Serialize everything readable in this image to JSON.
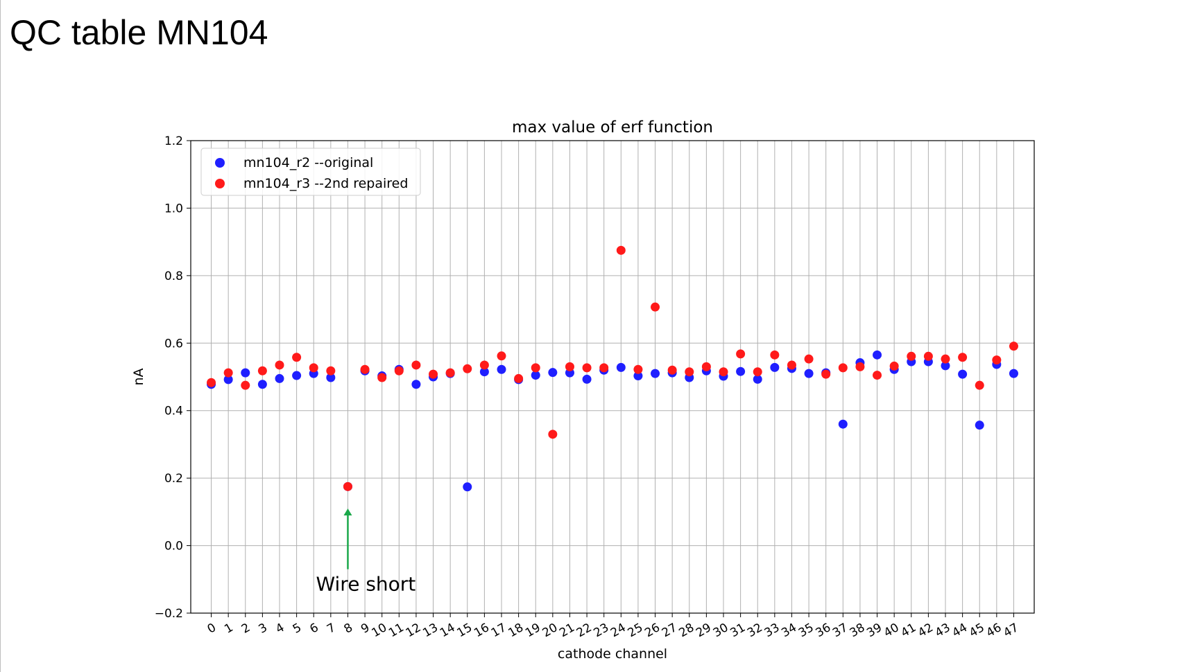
{
  "slide": {
    "title": "QC table MN104"
  },
  "chart_data": {
    "type": "scatter",
    "title": "max value of erf function",
    "xlabel": "cathode channel",
    "ylabel": "nA",
    "ylim": [
      -0.2,
      1.2
    ],
    "xlim": [
      -1.2,
      48.2
    ],
    "yticks": [
      -0.2,
      0.0,
      0.2,
      0.4,
      0.6,
      0.8,
      1.0,
      1.2
    ],
    "ytick_labels": [
      "−0.2",
      "0.0",
      "0.2",
      "0.4",
      "0.6",
      "0.8",
      "1.0",
      "1.2"
    ],
    "categories": [
      "0",
      "1",
      "2",
      "3",
      "4",
      "5",
      "6",
      "7",
      "8",
      "9",
      "10",
      "11",
      "12",
      "13",
      "14",
      "15",
      "16",
      "17",
      "18",
      "19",
      "20",
      "21",
      "22",
      "23",
      "24",
      "25",
      "26",
      "27",
      "28",
      "29",
      "30",
      "31",
      "32",
      "33",
      "34",
      "35",
      "36",
      "37",
      "38",
      "39",
      "40",
      "41",
      "42",
      "43",
      "44",
      "45",
      "46",
      "47"
    ],
    "grid": true,
    "legend_position": "upper left",
    "series": [
      {
        "name": "mn104_r2 --original",
        "color": "#1f1fff",
        "values": [
          0.478,
          0.492,
          0.512,
          0.478,
          0.495,
          0.504,
          0.51,
          0.498,
          0.175,
          0.518,
          0.503,
          0.522,
          0.478,
          0.5,
          0.51,
          0.174,
          0.515,
          0.522,
          0.492,
          0.505,
          0.513,
          0.512,
          0.493,
          0.52,
          0.528,
          0.503,
          0.51,
          0.512,
          0.498,
          0.518,
          0.502,
          0.516,
          0.493,
          0.528,
          0.525,
          0.51,
          0.512,
          0.36,
          0.542,
          0.565,
          0.522,
          0.545,
          0.545,
          0.533,
          0.508,
          0.357,
          0.537,
          0.51
        ]
      },
      {
        "name": "mn104_r3 --2nd repaired",
        "color": "#ff1a1a",
        "values": [
          0.483,
          0.512,
          0.475,
          0.518,
          0.535,
          0.558,
          0.527,
          0.518,
          0.175,
          0.522,
          0.498,
          0.518,
          0.535,
          0.508,
          0.512,
          0.524,
          0.535,
          0.562,
          0.495,
          0.527,
          0.33,
          0.53,
          0.527,
          0.527,
          0.875,
          0.522,
          0.707,
          0.52,
          0.515,
          0.53,
          0.515,
          0.568,
          0.515,
          0.565,
          0.535,
          0.553,
          0.508,
          0.527,
          0.53,
          0.505,
          0.532,
          0.561,
          0.561,
          0.553,
          0.558,
          0.475,
          0.55,
          0.591
        ]
      }
    ],
    "annotations": [
      {
        "text": "Wire short",
        "x": 8,
        "y_from": -0.07,
        "y_to": 0.11,
        "color": "#1aa84a"
      }
    ]
  }
}
